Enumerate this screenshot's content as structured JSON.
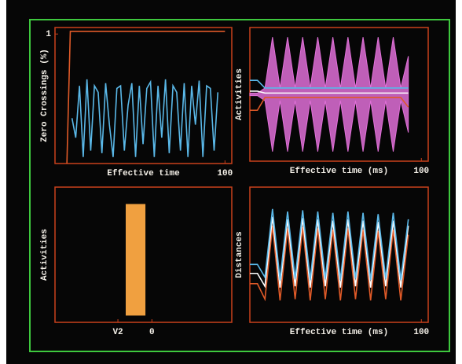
{
  "chart_data": [
    {
      "type": "line",
      "ylabel": "Zero Crossings (%)",
      "xlabel": "Effective time",
      "xlim": [
        0,
        104
      ],
      "ylim": [
        0,
        1.05
      ],
      "xticks": [
        100
      ],
      "yticks": [
        1
      ],
      "x": [
        10,
        12.2,
        14.4,
        16.6,
        18.8,
        21,
        23.2,
        25.4,
        27.6,
        29.8,
        32,
        34.2,
        36.4,
        38.6,
        40.8,
        43,
        45.2,
        47.4,
        49.6,
        51.8,
        54,
        56.2,
        58.4,
        60.6,
        62.8,
        65,
        67.2,
        69.4,
        71.6,
        73.8,
        76,
        78.2,
        80.4,
        82.6,
        84.8,
        87,
        89.2,
        91.4,
        93.6,
        95.8
      ],
      "series": [
        {
          "color": "#e05a28",
          "x": [
            7,
            9,
            100
          ],
          "values": [
            0,
            1.02,
            1.02
          ]
        },
        {
          "color": "#5ab8e8",
          "values": [
            0.35,
            0.2,
            0.6,
            0.05,
            0.65,
            0.1,
            0.6,
            0.55,
            0.08,
            0.62,
            0.3,
            0.05,
            0.58,
            0.6,
            0.1,
            0.45,
            0.62,
            0.05,
            0.6,
            0.15,
            0.58,
            0.63,
            0.05,
            0.6,
            0.2,
            0.65,
            0.08,
            0.6,
            0.55,
            0.1,
            0.62,
            0.05,
            0.6,
            0.3,
            0.64,
            0.05,
            0.6,
            0.58,
            0.1,
            0.55
          ]
        }
      ]
    },
    {
      "type": "line",
      "ylabel": "Activities",
      "xlabel": "Effective time (ms)",
      "xlim": [
        0,
        104
      ],
      "ylim": [
        -1.05,
        1.05
      ],
      "xticks": [
        100
      ],
      "x": [
        0,
        4.4,
        8.8,
        13.2,
        17.6,
        22,
        26.4,
        30.8,
        35.2,
        39.6,
        44,
        48.4,
        52.8,
        57.2,
        61.6,
        66,
        70.4,
        74.8,
        79.2,
        83.6,
        88,
        92.4
      ],
      "series": [
        {
          "color": "#e070d8",
          "values": [
            0.02,
            0.02,
            0.1,
            0.9,
            0.1,
            0.9,
            0.1,
            0.9,
            0.1,
            0.9,
            0.1,
            0.9,
            0.1,
            0.9,
            0.1,
            0.9,
            0.1,
            0.9,
            0.1,
            0.9,
            0.1,
            0.6
          ],
          "lower": [
            -0.02,
            -0.02,
            -0.1,
            -0.9,
            -0.1,
            -0.9,
            -0.1,
            -0.9,
            -0.1,
            -0.9,
            -0.1,
            -0.9,
            -0.1,
            -0.9,
            -0.1,
            -0.9,
            -0.1,
            -0.9,
            -0.1,
            -0.9,
            -0.1,
            -0.6
          ]
        },
        {
          "color": "#5ab8e8",
          "values": [
            0.22,
            0.22,
            0.1,
            0.1,
            0.1,
            0.1,
            0.1,
            0.1,
            0.1,
            0.1,
            0.1,
            0.1,
            0.1,
            0.1,
            0.1,
            0.1,
            0.1,
            0.1,
            0.1,
            0.1,
            0.1,
            0.1
          ]
        },
        {
          "color": "#ffffff",
          "values": [
            0.05,
            0.05,
            0.02,
            0.02,
            0.02,
            0.02,
            0.02,
            0.02,
            0.02,
            0.02,
            0.02,
            0.02,
            0.02,
            0.02,
            0.02,
            0.02,
            0.02,
            0.02,
            0.02,
            0.02,
            0.02,
            0.02
          ]
        },
        {
          "color": "#e05a28",
          "values": [
            -0.25,
            -0.25,
            -0.05,
            -0.05,
            -0.05,
            -0.05,
            -0.05,
            -0.05,
            -0.05,
            -0.05,
            -0.05,
            -0.05,
            -0.05,
            -0.05,
            -0.05,
            -0.05,
            -0.05,
            -0.05,
            -0.05,
            -0.05,
            -0.05,
            -0.2
          ]
        }
      ]
    },
    {
      "type": "band",
      "ylabel": "Activities",
      "xlim": [
        -2.85,
        2.35
      ],
      "ylim": [
        -1,
        1
      ],
      "xticks": [
        {
          "value": -1,
          "label": "V2"
        },
        0
      ],
      "band": {
        "color": "#f0a040",
        "x": [
          -0.77,
          -0.19
        ],
        "y": [
          -0.9,
          0.75
        ]
      }
    },
    {
      "type": "line",
      "ylabel": "Distances",
      "xlabel": "Effective time (ms)",
      "xlim": [
        0,
        104
      ],
      "ylim": [
        0,
        1.05
      ],
      "xticks": [
        100
      ],
      "x": [
        0,
        4.4,
        8.8,
        13.2,
        17.6,
        22,
        26.4,
        30.8,
        35.2,
        39.6,
        44,
        48.4,
        52.8,
        57.2,
        61.6,
        66,
        70.4,
        74.8,
        79.2,
        83.6,
        88,
        92.4
      ],
      "series": [
        {
          "color": "#e05a28",
          "values": [
            0.3,
            0.3,
            0.18,
            0.75,
            0.17,
            0.73,
            0.18,
            0.74,
            0.17,
            0.73,
            0.18,
            0.72,
            0.17,
            0.73,
            0.18,
            0.72,
            0.17,
            0.71,
            0.18,
            0.72,
            0.17,
            0.68
          ]
        },
        {
          "color": "#ffffff",
          "values": [
            0.38,
            0.38,
            0.28,
            0.82,
            0.27,
            0.8,
            0.28,
            0.81,
            0.27,
            0.8,
            0.28,
            0.79,
            0.27,
            0.8,
            0.28,
            0.79,
            0.27,
            0.78,
            0.28,
            0.79,
            0.27,
            0.75
          ]
        },
        {
          "color": "#5ab8e8",
          "values": [
            0.45,
            0.45,
            0.35,
            0.88,
            0.33,
            0.86,
            0.34,
            0.87,
            0.33,
            0.86,
            0.34,
            0.85,
            0.33,
            0.86,
            0.34,
            0.85,
            0.33,
            0.84,
            0.34,
            0.85,
            0.33,
            0.8
          ]
        }
      ]
    }
  ]
}
